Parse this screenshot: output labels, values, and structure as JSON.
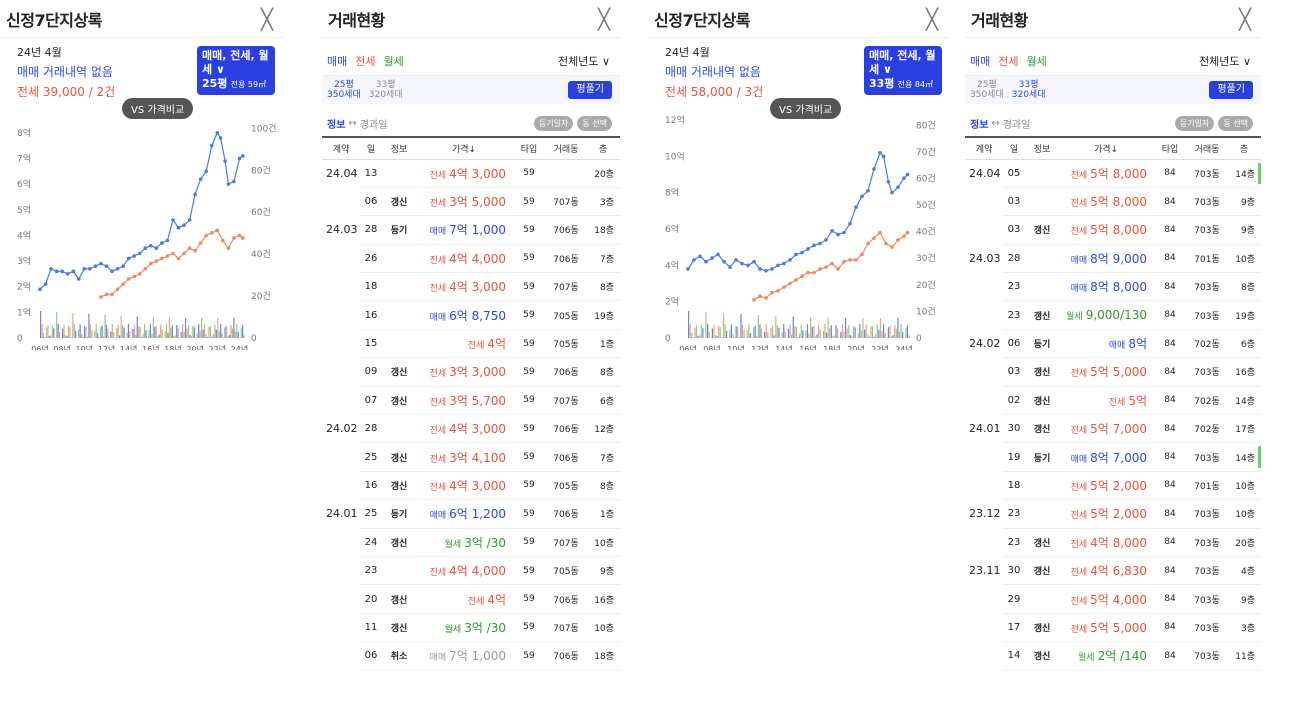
{
  "colors": {
    "sale": "#2b48e6",
    "jeonse": "#f0503c",
    "wolse": "#2a9d2a",
    "accent": "#2b3fe0"
  },
  "charts": [
    {
      "title": "신정7단지상록",
      "close": "╳",
      "month": "24년 4월",
      "sale_text": "매매 거래내역 없음",
      "jeonse_text": "전세 39,000 / 2건",
      "filter_line1": "매매, 전세, 월세 ∨",
      "filter_size": "25평",
      "filter_area": "전용 59㎡",
      "vs_label": "VS 가격비교",
      "chart_data": {
        "type": "line",
        "title": "",
        "left_axis_ticks": [
          "0",
          "1억",
          "2억",
          "3억",
          "4억",
          "5억",
          "6억",
          "7억",
          "8억"
        ],
        "right_axis_ticks": [
          "0",
          "20건",
          "40건",
          "60건",
          "80건",
          "100건"
        ],
        "x_ticks": [
          "06년",
          "08년",
          "10년",
          "12년",
          "14년",
          "16년",
          "18년",
          "20년",
          "22년",
          "24년"
        ],
        "ylim": [
          0,
          8.5
        ],
        "y2lim": [
          0,
          100
        ],
        "xlim": [
          2006,
          2024.5
        ],
        "series": [
          {
            "name": "매매",
            "color": "#4a7be8",
            "x": [
              2006,
              2006.5,
              2007,
              2007.5,
              2008,
              2008.5,
              2009,
              2009.5,
              2010,
              2010.5,
              2011,
              2011.5,
              2012,
              2012.5,
              2013,
              2013.5,
              2014,
              2014.5,
              2015,
              2015.5,
              2016,
              2016.5,
              2017,
              2017.5,
              2018,
              2018.5,
              2019,
              2019.5,
              2020,
              2020.5,
              2021,
              2021.5,
              2022,
              2022.3,
              2022.7,
              2023,
              2023.5,
              2024,
              2024.3
            ],
            "values": [
              1.9,
              2.1,
              2.7,
              2.6,
              2.6,
              2.5,
              2.6,
              2.3,
              2.7,
              2.7,
              2.8,
              2.9,
              2.8,
              2.6,
              2.7,
              2.8,
              3.1,
              3.2,
              3.3,
              3.5,
              3.6,
              3.5,
              3.7,
              3.8,
              4.6,
              4.3,
              4.4,
              4.6,
              5.6,
              6.2,
              6.5,
              7.5,
              8.0,
              7.8,
              6.9,
              6.0,
              6.1,
              7.0,
              7.1
            ]
          },
          {
            "name": "전세",
            "color": "#f08a5d",
            "x": [
              2011.5,
              2012,
              2012.5,
              2013,
              2013.5,
              2014,
              2014.5,
              2015,
              2015.5,
              2016,
              2016.5,
              2017,
              2017.5,
              2018,
              2018.5,
              2019,
              2019.5,
              2020,
              2020.5,
              2021,
              2021.5,
              2022,
              2022.5,
              2023,
              2023.5,
              2024,
              2024.3
            ],
            "values": [
              1.6,
              1.7,
              1.7,
              1.9,
              2.1,
              2.3,
              2.4,
              2.5,
              2.7,
              2.9,
              3.0,
              3.1,
              3.2,
              3.3,
              3.1,
              3.3,
              3.5,
              3.4,
              3.7,
              4.0,
              4.1,
              4.2,
              3.8,
              3.5,
              3.9,
              4.0,
              3.9
            ]
          }
        ]
      }
    },
    {
      "title": "신정7단지상록",
      "close": "╳",
      "month": "24년 4월",
      "sale_text": "매매 거래내역 없음",
      "jeonse_text": "전세 58,000 / 3건",
      "filter_line1": "매매, 전세, 월세 ∨",
      "filter_size": "33평",
      "filter_area": "전용 84㎡",
      "vs_label": "VS 가격비교",
      "chart_data": {
        "type": "line",
        "title": "",
        "left_axis_ticks": [
          "0",
          "2억",
          "4억",
          "6억",
          "8억",
          "10억",
          "12억"
        ],
        "right_axis_ticks": [
          "0",
          "10건",
          "20건",
          "30건",
          "40건",
          "50건",
          "60건",
          "70건",
          "80건"
        ],
        "x_ticks": [
          "06년",
          "08년",
          "10년",
          "12년",
          "14년",
          "16년",
          "18년",
          "20년",
          "22년",
          "24년"
        ],
        "ylim": [
          0,
          12
        ],
        "y2lim": [
          0,
          80
        ],
        "xlim": [
          2006,
          2024.5
        ],
        "series": [
          {
            "name": "매매",
            "color": "#4a7be8",
            "x": [
              2006,
              2006.5,
              2007,
              2007.5,
              2008,
              2008.5,
              2009,
              2009.5,
              2010,
              2010.5,
              2011,
              2011.5,
              2012,
              2012.5,
              2013,
              2013.5,
              2014,
              2014.5,
              2015,
              2015.5,
              2016,
              2016.5,
              2017,
              2017.5,
              2018,
              2018.5,
              2019,
              2019.5,
              2020,
              2020.5,
              2021,
              2021.5,
              2022,
              2022.3,
              2022.7,
              2023,
              2023.5,
              2024,
              2024.3
            ],
            "values": [
              3.8,
              4.3,
              4.5,
              4.2,
              4.4,
              4.6,
              4.2,
              3.9,
              4.3,
              4.1,
              4.0,
              4.2,
              3.8,
              3.7,
              3.8,
              4.0,
              4.1,
              4.3,
              4.6,
              4.7,
              4.9,
              5.1,
              5.2,
              5.4,
              5.9,
              5.7,
              5.8,
              6.3,
              7.2,
              7.8,
              8.1,
              9.3,
              10.2,
              10.0,
              8.6,
              8.0,
              8.3,
              8.8,
              9.0
            ]
          },
          {
            "name": "전세",
            "color": "#f08a5d",
            "x": [
              2011.5,
              2012,
              2012.5,
              2013,
              2013.5,
              2014,
              2014.5,
              2015,
              2015.5,
              2016,
              2016.5,
              2017,
              2017.5,
              2018,
              2018.5,
              2019,
              2019.5,
              2020,
              2020.5,
              2021,
              2021.5,
              2022,
              2022.5,
              2023,
              2023.5,
              2024,
              2024.3
            ],
            "values": [
              2.1,
              2.3,
              2.2,
              2.5,
              2.6,
              2.8,
              3.0,
              3.2,
              3.4,
              3.6,
              3.6,
              3.8,
              3.9,
              4.1,
              3.8,
              4.2,
              4.3,
              4.3,
              4.6,
              5.2,
              5.5,
              5.8,
              5.2,
              5.0,
              5.4,
              5.6,
              5.8
            ]
          }
        ]
      }
    }
  ],
  "tables": [
    {
      "title": "거래현황",
      "close": "╳",
      "tabs": [
        "매매",
        "전세",
        "월세"
      ],
      "year_filter": "전체년도 ∨",
      "area_a_top": "25평",
      "area_a_bot": "350세대",
      "area_b_top": "33평",
      "area_b_bot": "320세대",
      "pyeong_btn": "평풀기",
      "info_link": "정보",
      "info_arrow": "↔",
      "info_elapsed": "경과일",
      "chip1": "등기일자",
      "chip2": "동 선택",
      "headers": [
        "계약",
        "일",
        "정보",
        "가격↓",
        "타입",
        "거래동",
        "층"
      ],
      "rows": [
        {
          "ym": "24.04",
          "d": "13",
          "ga": "",
          "kind": "전세",
          "price": "4억 3,000",
          "t": "59",
          "dong": "",
          "fl": "20층",
          "c": "jeon"
        },
        {
          "ym": "",
          "d": "06",
          "ga": "갱신",
          "kind": "전세",
          "price": "3억 5,000",
          "t": "59",
          "dong": "707동",
          "fl": "3층",
          "c": "jeon"
        },
        {
          "ym": "24.03",
          "d": "28",
          "ga": "등기",
          "kind": "매매",
          "price": "7억 1,000",
          "t": "59",
          "dong": "706동",
          "fl": "18층",
          "c": "mae"
        },
        {
          "ym": "",
          "d": "26",
          "ga": "",
          "kind": "전세",
          "price": "4억 4,000",
          "t": "59",
          "dong": "706동",
          "fl": "7층",
          "c": "jeon"
        },
        {
          "ym": "",
          "d": "18",
          "ga": "",
          "kind": "전세",
          "price": "4억 3,000",
          "t": "59",
          "dong": "707동",
          "fl": "8층",
          "c": "jeon"
        },
        {
          "ym": "",
          "d": "16",
          "ga": "",
          "kind": "매매",
          "price": "6억 8,750",
          "t": "59",
          "dong": "705동",
          "fl": "19층",
          "c": "mae"
        },
        {
          "ym": "",
          "d": "15",
          "ga": "",
          "kind": "전세",
          "price": "4억",
          "t": "59",
          "dong": "705동",
          "fl": "1층",
          "c": "jeon"
        },
        {
          "ym": "",
          "d": "09",
          "ga": "갱신",
          "kind": "전세",
          "price": "3억 3,000",
          "t": "59",
          "dong": "706동",
          "fl": "8층",
          "c": "jeon"
        },
        {
          "ym": "",
          "d": "07",
          "ga": "갱신",
          "kind": "전세",
          "price": "3억 5,700",
          "t": "59",
          "dong": "707동",
          "fl": "6층",
          "c": "jeon"
        },
        {
          "ym": "24.02",
          "d": "28",
          "ga": "",
          "kind": "전세",
          "price": "4억 3,000",
          "t": "59",
          "dong": "706동",
          "fl": "12층",
          "c": "jeon"
        },
        {
          "ym": "",
          "d": "25",
          "ga": "갱신",
          "kind": "전세",
          "price": "3억 4,100",
          "t": "59",
          "dong": "706동",
          "fl": "7층",
          "c": "jeon"
        },
        {
          "ym": "",
          "d": "16",
          "ga": "갱신",
          "kind": "전세",
          "price": "4억 3,000",
          "t": "59",
          "dong": "705동",
          "fl": "8층",
          "c": "jeon"
        },
        {
          "ym": "24.01",
          "d": "25",
          "ga": "등기",
          "kind": "매매",
          "price": "6억 1,200",
          "t": "59",
          "dong": "706동",
          "fl": "1층",
          "c": "mae"
        },
        {
          "ym": "",
          "d": "24",
          "ga": "갱신",
          "kind": "월세",
          "price": "3억 /30",
          "t": "59",
          "dong": "707동",
          "fl": "10층",
          "c": "wol"
        },
        {
          "ym": "",
          "d": "23",
          "ga": "",
          "kind": "전세",
          "price": "4억 4,000",
          "t": "59",
          "dong": "705동",
          "fl": "9층",
          "c": "jeon"
        },
        {
          "ym": "",
          "d": "20",
          "ga": "갱신",
          "kind": "전세",
          "price": "4억",
          "t": "59",
          "dong": "706동",
          "fl": "16층",
          "c": "jeon"
        },
        {
          "ym": "",
          "d": "11",
          "ga": "갱신",
          "kind": "월세",
          "price": "3억 /30",
          "t": "59",
          "dong": "707동",
          "fl": "10층",
          "c": "wol"
        },
        {
          "ym": "",
          "d": "06",
          "ga": "취소",
          "kind": "매매",
          "price": "7억 1,000",
          "t": "59",
          "dong": "706동",
          "fl": "18층",
          "c": "cancel"
        }
      ]
    },
    {
      "title": "거래현황",
      "close": "╳",
      "tabs": [
        "매매",
        "전세",
        "월세"
      ],
      "year_filter": "전체년도 ∨",
      "area_a_top": "25평",
      "area_a_bot": "350세대",
      "area_b_top": "33평",
      "area_b_bot": "320세대",
      "pyeong_btn": "평풀기",
      "info_link": "정보",
      "info_arrow": "↔",
      "info_elapsed": "경과일",
      "chip1": "등기일자",
      "chip2": "동 선택",
      "headers": [
        "계약",
        "일",
        "정보",
        "가격↓",
        "타입",
        "거래동",
        "층"
      ],
      "rows": [
        {
          "ym": "24.04",
          "d": "05",
          "ga": "",
          "kind": "전세",
          "price": "5억 8,000",
          "t": "84",
          "dong": "703동",
          "fl": "14층",
          "c": "jeon",
          "bar": true
        },
        {
          "ym": "",
          "d": "03",
          "ga": "",
          "kind": "전세",
          "price": "5억 8,000",
          "t": "84",
          "dong": "703동",
          "fl": "9층",
          "c": "jeon"
        },
        {
          "ym": "",
          "d": "03",
          "ga": "갱신",
          "kind": "전세",
          "price": "5억 8,000",
          "t": "84",
          "dong": "703동",
          "fl": "9층",
          "c": "jeon"
        },
        {
          "ym": "24.03",
          "d": "28",
          "ga": "",
          "kind": "매매",
          "price": "8억 9,000",
          "t": "84",
          "dong": "701동",
          "fl": "10층",
          "c": "mae"
        },
        {
          "ym": "",
          "d": "23",
          "ga": "",
          "kind": "매매",
          "price": "8억 8,000",
          "t": "84",
          "dong": "703동",
          "fl": "8층",
          "c": "mae"
        },
        {
          "ym": "",
          "d": "23",
          "ga": "갱신",
          "kind": "월세",
          "price": "9,000/130",
          "t": "84",
          "dong": "703동",
          "fl": "19층",
          "c": "wol"
        },
        {
          "ym": "24.02",
          "d": "06",
          "ga": "등기",
          "kind": "매매",
          "price": "8억",
          "t": "84",
          "dong": "702동",
          "fl": "6층",
          "c": "mae"
        },
        {
          "ym": "",
          "d": "03",
          "ga": "갱신",
          "kind": "전세",
          "price": "5억 5,000",
          "t": "84",
          "dong": "703동",
          "fl": "16층",
          "c": "jeon"
        },
        {
          "ym": "",
          "d": "02",
          "ga": "갱신",
          "kind": "전세",
          "price": "5억",
          "t": "84",
          "dong": "702동",
          "fl": "14층",
          "c": "jeon"
        },
        {
          "ym": "24.01",
          "d": "30",
          "ga": "갱신",
          "kind": "전세",
          "price": "5억 7,000",
          "t": "84",
          "dong": "702동",
          "fl": "17층",
          "c": "jeon"
        },
        {
          "ym": "",
          "d": "19",
          "ga": "등기",
          "kind": "매매",
          "price": "8억 7,000",
          "t": "84",
          "dong": "703동",
          "fl": "14층",
          "c": "mae",
          "bar": true
        },
        {
          "ym": "",
          "d": "18",
          "ga": "",
          "kind": "전세",
          "price": "5억 2,000",
          "t": "84",
          "dong": "701동",
          "fl": "10층",
          "c": "jeon"
        },
        {
          "ym": "23.12",
          "d": "23",
          "ga": "",
          "kind": "전세",
          "price": "5억 2,000",
          "t": "84",
          "dong": "703동",
          "fl": "10층",
          "c": "jeon"
        },
        {
          "ym": "",
          "d": "23",
          "ga": "갱신",
          "kind": "전세",
          "price": "4억 8,000",
          "t": "84",
          "dong": "703동",
          "fl": "20층",
          "c": "jeon"
        },
        {
          "ym": "23.11",
          "d": "30",
          "ga": "갱신",
          "kind": "전세",
          "price": "4억 6,830",
          "t": "84",
          "dong": "703동",
          "fl": "4층",
          "c": "jeon"
        },
        {
          "ym": "",
          "d": "29",
          "ga": "",
          "kind": "전세",
          "price": "5억 4,000",
          "t": "84",
          "dong": "703동",
          "fl": "9층",
          "c": "jeon"
        },
        {
          "ym": "",
          "d": "17",
          "ga": "갱신",
          "kind": "전세",
          "price": "5억 5,000",
          "t": "84",
          "dong": "703동",
          "fl": "3층",
          "c": "jeon"
        },
        {
          "ym": "",
          "d": "14",
          "ga": "갱신",
          "kind": "월세",
          "price": "2억 /140",
          "t": "84",
          "dong": "703동",
          "fl": "11층",
          "c": "wol"
        }
      ]
    }
  ]
}
